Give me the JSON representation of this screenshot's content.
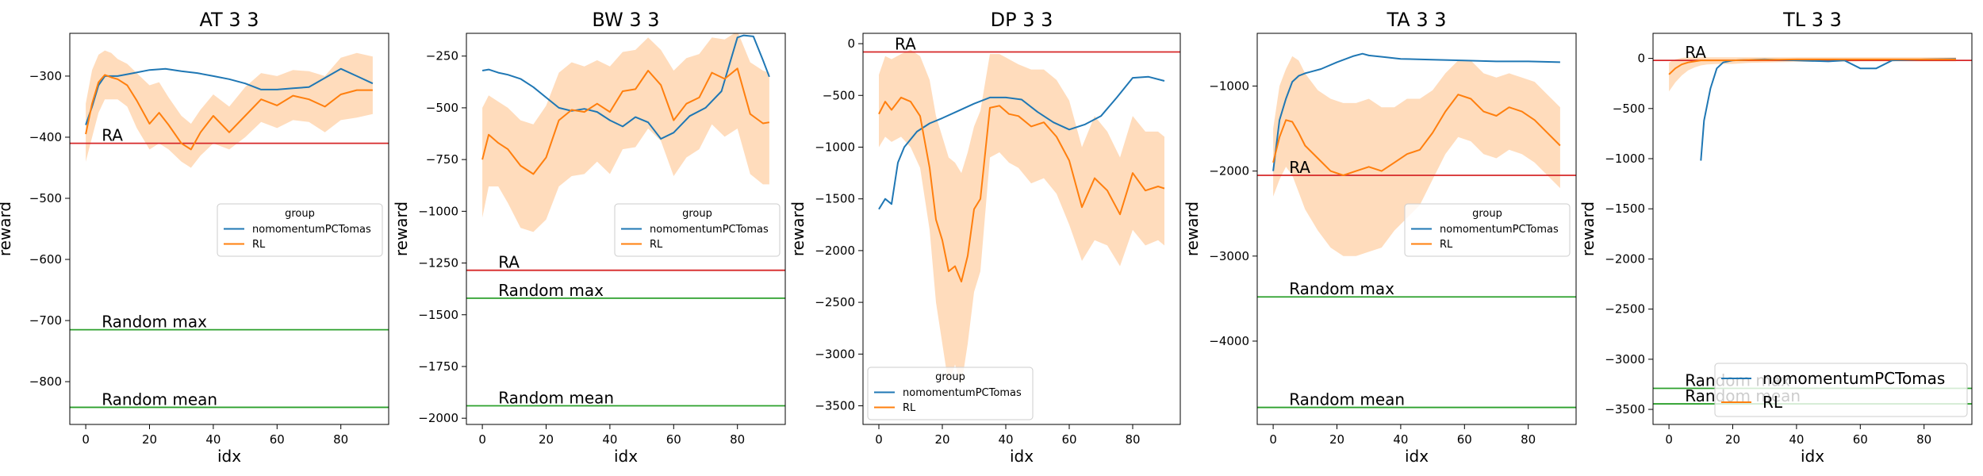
{
  "figure": {
    "colors": {
      "series_a": "#1f77b4",
      "series_b": "#ff7f0e",
      "band": "#ffdcbc",
      "ra_line": "#d62728",
      "random_lines": "#2ca02c",
      "axes": "#000000",
      "background": "#ffffff"
    }
  },
  "chart_data": [
    {
      "type": "line",
      "title": "AT 3 3",
      "xlabel": "idx",
      "ylabel": "reward",
      "xlim": [
        -5,
        95
      ],
      "ylim": [
        -870,
        -230
      ],
      "xticks": [
        0,
        20,
        40,
        60,
        80
      ],
      "yticks": [
        -800,
        -700,
        -600,
        -500,
        -400,
        -300
      ],
      "grid": false,
      "legend": {
        "title": "group",
        "entries": [
          "nomomentumPCTomas",
          "RL"
        ],
        "placement": "center-right"
      },
      "series": [
        {
          "name": "nomomentumPCTomas",
          "x": [
            0,
            2,
            4,
            6,
            8,
            10,
            15,
            20,
            25,
            30,
            35,
            40,
            45,
            50,
            55,
            60,
            65,
            70,
            75,
            80,
            85,
            90
          ],
          "y": [
            -380,
            -350,
            -315,
            -300,
            -300,
            -300,
            -295,
            -290,
            -288,
            -292,
            -295,
            -300,
            -305,
            -312,
            -322,
            -322,
            -320,
            -318,
            -303,
            -288,
            -300,
            -312
          ]
        },
        {
          "name": "RL",
          "x": [
            0,
            2,
            4,
            6,
            8,
            10,
            13,
            16,
            20,
            23,
            26,
            30,
            33,
            36,
            40,
            45,
            50,
            55,
            60,
            65,
            70,
            75,
            80,
            85,
            90
          ],
          "y": [
            -395,
            -345,
            -310,
            -298,
            -302,
            -305,
            -315,
            -340,
            -378,
            -360,
            -380,
            -410,
            -420,
            -392,
            -365,
            -392,
            -365,
            -338,
            -348,
            -332,
            -338,
            -350,
            -330,
            -323,
            -323
          ],
          "band_low": [
            -440,
            -400,
            -360,
            -338,
            -338,
            -338,
            -350,
            -385,
            -420,
            -410,
            -420,
            -440,
            -450,
            -430,
            -410,
            -420,
            -400,
            -375,
            -385,
            -372,
            -375,
            -392,
            -372,
            -368,
            -362
          ],
          "band_high": [
            -345,
            -290,
            -265,
            -258,
            -262,
            -272,
            -280,
            -295,
            -315,
            -310,
            -335,
            -365,
            -378,
            -355,
            -330,
            -350,
            -318,
            -295,
            -300,
            -290,
            -292,
            -300,
            -270,
            -262,
            -268
          ]
        }
      ],
      "hlines": [
        {
          "label": "RA",
          "y": -410,
          "color_key": "ra_line",
          "label_x": 5
        },
        {
          "label": "Random max",
          "y": -715,
          "color_key": "random_lines",
          "label_x": 5
        },
        {
          "label": "Random mean",
          "y": -842,
          "color_key": "random_lines",
          "label_x": 5
        }
      ]
    },
    {
      "type": "line",
      "title": "BW 3 3",
      "xlabel": "idx",
      "ylabel": "reward",
      "xlim": [
        -5,
        95
      ],
      "ylim": [
        -2030,
        -140
      ],
      "xticks": [
        0,
        20,
        40,
        60,
        80
      ],
      "yticks": [
        -2000,
        -1750,
        -1500,
        -1250,
        -1000,
        -750,
        -500,
        -250
      ],
      "grid": false,
      "legend": {
        "title": "group",
        "entries": [
          "nomomentumPCTomas",
          "RL"
        ],
        "placement": "center-right"
      },
      "series": [
        {
          "name": "nomomentumPCTomas",
          "x": [
            0,
            2,
            5,
            8,
            12,
            16,
            20,
            24,
            28,
            32,
            36,
            40,
            44,
            48,
            52,
            56,
            60,
            65,
            70,
            75,
            80,
            82,
            85,
            88,
            90
          ],
          "y": [
            -320,
            -315,
            -330,
            -340,
            -360,
            -400,
            -450,
            -500,
            -515,
            -505,
            -520,
            -560,
            -590,
            -545,
            -570,
            -650,
            -620,
            -540,
            -500,
            -420,
            -160,
            -150,
            -155,
            -270,
            -350
          ]
        },
        {
          "name": "RL",
          "x": [
            0,
            2,
            5,
            8,
            12,
            16,
            20,
            24,
            28,
            32,
            36,
            40,
            44,
            48,
            52,
            56,
            60,
            64,
            68,
            72,
            76,
            80,
            84,
            88,
            90
          ],
          "y": [
            -750,
            -630,
            -670,
            -700,
            -780,
            -820,
            -740,
            -560,
            -510,
            -520,
            -480,
            -520,
            -420,
            -410,
            -320,
            -390,
            -560,
            -480,
            -450,
            -330,
            -360,
            -310,
            -530,
            -575,
            -570
          ],
          "band_low": [
            -1030,
            -880,
            -880,
            -960,
            -1080,
            -1100,
            -1040,
            -880,
            -830,
            -820,
            -760,
            -820,
            -700,
            -690,
            -600,
            -660,
            -830,
            -740,
            -700,
            -580,
            -640,
            -600,
            -820,
            -870,
            -870
          ],
          "band_high": [
            -500,
            -440,
            -470,
            -500,
            -560,
            -580,
            -490,
            -330,
            -280,
            -300,
            -270,
            -300,
            -230,
            -220,
            -160,
            -220,
            -320,
            -260,
            -240,
            -160,
            -170,
            -130,
            -280,
            -320,
            -330
          ]
        }
      ],
      "hlines": [
        {
          "label": "RA",
          "y": -1285,
          "color_key": "ra_line",
          "label_x": 5
        },
        {
          "label": "Random max",
          "y": -1420,
          "color_key": "random_lines",
          "label_x": 5
        },
        {
          "label": "Random mean",
          "y": -1940,
          "color_key": "random_lines",
          "label_x": 5
        }
      ]
    },
    {
      "type": "line",
      "title": "DP 3 3",
      "xlabel": "idx",
      "ylabel": "reward",
      "xlim": [
        -5,
        95
      ],
      "ylim": [
        -3680,
        100
      ],
      "xticks": [
        0,
        20,
        40,
        60,
        80
      ],
      "yticks": [
        -3500,
        -3000,
        -2500,
        -2000,
        -1500,
        -1000,
        -500,
        0
      ],
      "grid": false,
      "legend": {
        "title": "group",
        "entries": [
          "nomomentumPCTomas",
          "RL"
        ],
        "placement": "lower-left"
      },
      "series": [
        {
          "name": "nomomentumPCTomas",
          "x": [
            0,
            2,
            4,
            6,
            8,
            12,
            16,
            20,
            25,
            30,
            35,
            40,
            45,
            50,
            55,
            60,
            65,
            70,
            75,
            80,
            85,
            90
          ],
          "y": [
            -1600,
            -1500,
            -1550,
            -1150,
            -1000,
            -850,
            -770,
            -720,
            -650,
            -580,
            -520,
            -520,
            -540,
            -660,
            -760,
            -830,
            -780,
            -700,
            -520,
            -330,
            -320,
            -360
          ]
        },
        {
          "name": "RL",
          "x": [
            0,
            2,
            4,
            7,
            10,
            13,
            16,
            18,
            20,
            22,
            24,
            26,
            28,
            30,
            32,
            35,
            38,
            41,
            44,
            48,
            52,
            56,
            60,
            64,
            68,
            72,
            76,
            80,
            84,
            88,
            90
          ],
          "y": [
            -680,
            -560,
            -640,
            -520,
            -560,
            -700,
            -1200,
            -1700,
            -1900,
            -2200,
            -2150,
            -2300,
            -2050,
            -1600,
            -1500,
            -620,
            -600,
            -680,
            -700,
            -800,
            -760,
            -900,
            -1130,
            -1580,
            -1300,
            -1420,
            -1650,
            -1250,
            -1420,
            -1380,
            -1400
          ],
          "band_low": [
            -1000,
            -900,
            -950,
            -900,
            -1000,
            -1200,
            -1800,
            -2500,
            -2900,
            -3300,
            -3100,
            -3300,
            -2900,
            -2400,
            -2200,
            -1100,
            -1050,
            -1150,
            -1200,
            -1350,
            -1300,
            -1450,
            -1750,
            -2100,
            -1900,
            -1950,
            -2150,
            -1800,
            -1950,
            -1900,
            -1950
          ],
          "band_high": [
            -300,
            -120,
            -150,
            -100,
            -60,
            -120,
            -350,
            -700,
            -900,
            -1100,
            -1150,
            -1250,
            -1050,
            -800,
            -650,
            -100,
            -100,
            -150,
            -200,
            -250,
            -250,
            -350,
            -550,
            -1000,
            -700,
            -850,
            -1100,
            -700,
            -850,
            -850,
            -900
          ]
        }
      ],
      "hlines": [
        {
          "label": "RA",
          "y": -80,
          "color_key": "ra_line",
          "label_x": 5
        }
      ]
    },
    {
      "type": "line",
      "title": "TA 3 3",
      "xlabel": "idx",
      "ylabel": "reward",
      "xlim": [
        -5,
        95
      ],
      "ylim": [
        -4980,
        -380
      ],
      "xticks": [
        0,
        20,
        40,
        60,
        80
      ],
      "yticks": [
        -4000,
        -3000,
        -2000,
        -1000
      ],
      "grid": false,
      "legend": {
        "title": "group",
        "entries": [
          "nomomentumPCTomas",
          "RL"
        ],
        "placement": "center-right"
      },
      "series": [
        {
          "name": "nomomentumPCTomas",
          "x": [
            0,
            2,
            4,
            6,
            8,
            10,
            15,
            20,
            25,
            28,
            30,
            35,
            40,
            50,
            60,
            70,
            80,
            90
          ],
          "y": [
            -2000,
            -1400,
            -1150,
            -950,
            -880,
            -850,
            -800,
            -720,
            -650,
            -620,
            -640,
            -660,
            -680,
            -690,
            -700,
            -710,
            -710,
            -720
          ]
        },
        {
          "name": "RL",
          "x": [
            0,
            2,
            4,
            6,
            8,
            10,
            14,
            18,
            22,
            26,
            30,
            34,
            38,
            42,
            46,
            50,
            54,
            58,
            62,
            66,
            70,
            74,
            78,
            82,
            86,
            90
          ],
          "y": [
            -1900,
            -1600,
            -1400,
            -1420,
            -1550,
            -1700,
            -1850,
            -2000,
            -2050,
            -2000,
            -1950,
            -2000,
            -1900,
            -1800,
            -1750,
            -1550,
            -1300,
            -1100,
            -1150,
            -1300,
            -1350,
            -1250,
            -1300,
            -1400,
            -1550,
            -1700
          ],
          "band_low": [
            -2300,
            -2100,
            -1950,
            -2050,
            -2250,
            -2450,
            -2700,
            -2900,
            -3000,
            -3000,
            -2950,
            -2900,
            -2700,
            -2550,
            -2400,
            -2100,
            -1800,
            -1600,
            -1650,
            -1800,
            -1850,
            -1750,
            -1800,
            -1900,
            -2050,
            -2200
          ],
          "band_high": [
            -1500,
            -1000,
            -800,
            -650,
            -700,
            -850,
            -1050,
            -1150,
            -1200,
            -1200,
            -1150,
            -1250,
            -1250,
            -1150,
            -1150,
            -1050,
            -850,
            -700,
            -700,
            -850,
            -900,
            -850,
            -900,
            -950,
            -1100,
            -1250
          ]
        }
      ],
      "hlines": [
        {
          "label": "RA",
          "y": -2050,
          "color_key": "ra_line",
          "label_x": 5
        },
        {
          "label": "Random max",
          "y": -3480,
          "color_key": "random_lines",
          "label_x": 5
        },
        {
          "label": "Random mean",
          "y": -4780,
          "color_key": "random_lines",
          "label_x": 5
        }
      ]
    },
    {
      "type": "line",
      "title": "TL 3 3",
      "xlabel": "idx",
      "ylabel": "reward",
      "xlim": [
        -5,
        95
      ],
      "ylim": [
        -3650,
        250
      ],
      "xticks": [
        0,
        20,
        40,
        60,
        80
      ],
      "yticks": [
        -3500,
        -3000,
        -2500,
        -2000,
        -1500,
        -1000,
        -500,
        0
      ],
      "grid": false,
      "legend": {
        "title": "",
        "entries": [
          "nomomentumPCTomas",
          "RL"
        ],
        "placement": "lower-right"
      },
      "series": [
        {
          "name": "nomomentumPCTomas",
          "x": [
            10,
            11,
            13,
            15,
            17,
            20,
            25,
            30,
            40,
            50,
            55,
            60,
            65,
            70,
            80,
            90
          ],
          "y": [
            -1020,
            -620,
            -300,
            -100,
            -40,
            -20,
            -15,
            -10,
            -20,
            -30,
            -20,
            -100,
            -100,
            -20,
            -10,
            -5
          ]
        },
        {
          "name": "RL",
          "x": [
            0,
            2,
            4,
            6,
            8,
            10,
            12,
            15,
            20,
            25,
            30,
            40,
            50,
            60,
            70,
            80,
            90
          ],
          "y": [
            -160,
            -100,
            -60,
            -40,
            -30,
            -20,
            -20,
            -20,
            -20,
            -15,
            -15,
            -10,
            -10,
            -10,
            -10,
            -10,
            -10
          ],
          "band_low": [
            -330,
            -240,
            -170,
            -120,
            -90,
            -70,
            -60,
            -55,
            -55,
            -45,
            -40,
            -35,
            -35,
            -30,
            -30,
            -30,
            -30
          ],
          "band_high": [
            -40,
            -10,
            5,
            10,
            10,
            10,
            10,
            10,
            10,
            10,
            10,
            10,
            10,
            10,
            10,
            10,
            10
          ]
        }
      ],
      "hlines": [
        {
          "label": "RA",
          "y": -20,
          "color_key": "ra_line",
          "label_x": 5
        },
        {
          "label": "Random max",
          "y": -3290,
          "color_key": "random_lines",
          "label_x": 5
        },
        {
          "label": "Random mean",
          "y": -3445,
          "color_key": "random_lines",
          "label_x": 5
        }
      ]
    }
  ]
}
